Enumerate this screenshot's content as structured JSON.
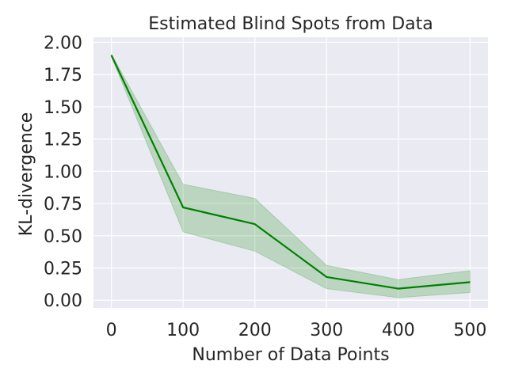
{
  "chart_data": {
    "type": "line",
    "title": "Estimated Blind Spots from Data",
    "xlabel": "Number of Data Points",
    "ylabel": "KL-divergence",
    "x": [
      0,
      100,
      200,
      300,
      400,
      500
    ],
    "series": [
      {
        "values": [
          1.9,
          0.72,
          0.59,
          0.18,
          0.09,
          0.14
        ],
        "lower": [
          1.89,
          0.53,
          0.38,
          0.09,
          0.02,
          0.06
        ],
        "upper": [
          1.91,
          0.9,
          0.79,
          0.27,
          0.16,
          0.23
        ],
        "color": "#008000",
        "band_color": "#008000"
      }
    ],
    "xticks": [
      "0",
      "100",
      "200",
      "300",
      "400",
      "500"
    ],
    "yticks": [
      "0.00",
      "0.25",
      "0.50",
      "0.75",
      "1.00",
      "1.25",
      "1.50",
      "1.75",
      "2.00"
    ],
    "xlim": [
      -25,
      525
    ],
    "ylim": [
      -0.06,
      2.04
    ],
    "grid": true,
    "background_color": "#eaeaf2",
    "grid_color": "#ffffff"
  }
}
